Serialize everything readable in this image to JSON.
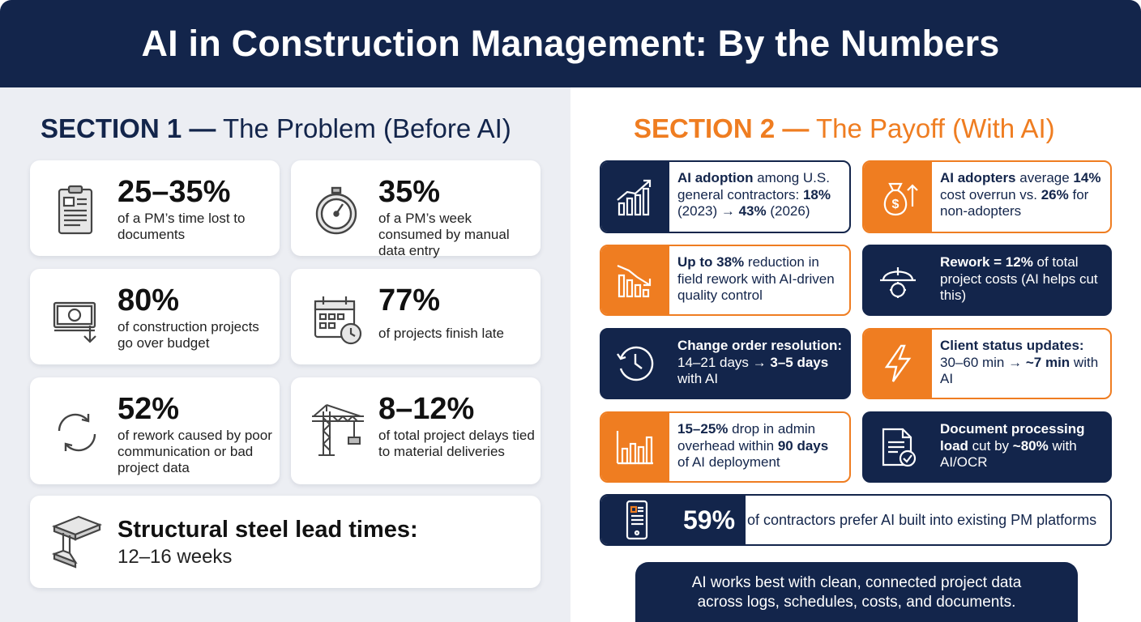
{
  "header": {
    "title": "AI in Construction Management: By the Numbers"
  },
  "section1": {
    "prefix": "SECTION 1 —",
    "rest": " The Problem (Before AI)",
    "cards": [
      {
        "big": "25–35%",
        "desc": "of a PM’s time lost to documents",
        "icon": "clipboard-icon"
      },
      {
        "big": "35%",
        "desc": "of a PM’s week consumed by manual data entry",
        "icon": "stopwatch-icon"
      },
      {
        "big": "80%",
        "desc": "of construction projects go over budget",
        "icon": "money-down-icon"
      },
      {
        "big": "77%",
        "desc": "of projects finish late",
        "icon": "calendar-clock-icon"
      },
      {
        "big": "52%",
        "desc": "of rework caused by poor communication or bad project data",
        "icon": "refresh-cycle-icon"
      },
      {
        "big": "8–12%",
        "desc": "of total project delays tied to material deliveries",
        "icon": "crane-icon"
      }
    ],
    "steel": {
      "title": "Structural steel lead times:",
      "sub": "12–16 weeks",
      "icon": "steel-beam-icon"
    }
  },
  "section2": {
    "prefix": "SECTION 2 —",
    "rest": " The Payoff (With AI)",
    "cards": [
      {
        "p1b": "AI adoption",
        "p1": " among U.S. general contractors: ",
        "p2b": "18%",
        "p2": " (2023) → ",
        "p3b": "43%",
        "p3": " (2026)",
        "icon": "growth-chart-icon"
      },
      {
        "p1b": "AI adopters",
        "p1": " average ",
        "p2b": "14%",
        "p2": " cost overrun vs. ",
        "p3b": "26%",
        "p3": " for non-adopters",
        "icon": "money-bag-icon"
      },
      {
        "p1b": "Up to 38%",
        "p1": " reduction in field rework with AI-driven quality control",
        "icon": "declining-bars-icon"
      },
      {
        "p1b": "Rework = 12%",
        "p1": " of total project costs (AI helps cut this)",
        "icon": "hardhat-gear-icon"
      },
      {
        "p1b": "Change order resolution:",
        "p1": " 14–21 days → ",
        "p2b": "3–5 days",
        "p2": " with AI",
        "icon": "clock-icon"
      },
      {
        "p1b": "Client status updates:",
        "p1": " 30–60 min → ",
        "p2b": "~7 min",
        "p2": " with AI",
        "icon": "lightning-icon"
      },
      {
        "p1b": "15–25%",
        "p1": " drop in admin overhead within ",
        "p2b": "90 days",
        "p2": " of AI deployment",
        "icon": "bar-chart-icon"
      },
      {
        "p1b": "Document processing load",
        "p1": " cut by ",
        "p2b": "~80%",
        "p2": " with AI/OCR",
        "icon": "document-check-icon"
      }
    ],
    "wide": {
      "pct": "59%",
      "text": "of contractors prefer AI built into existing PM platforms",
      "icon": "mobile-app-icon"
    },
    "footer": {
      "line1": "AI works best with clean, connected project data",
      "line2": "across logs, schedules, costs, and documents."
    }
  },
  "colors": {
    "navy": "#13254b",
    "orange": "#ef7d21",
    "panel": "#eceef3"
  }
}
